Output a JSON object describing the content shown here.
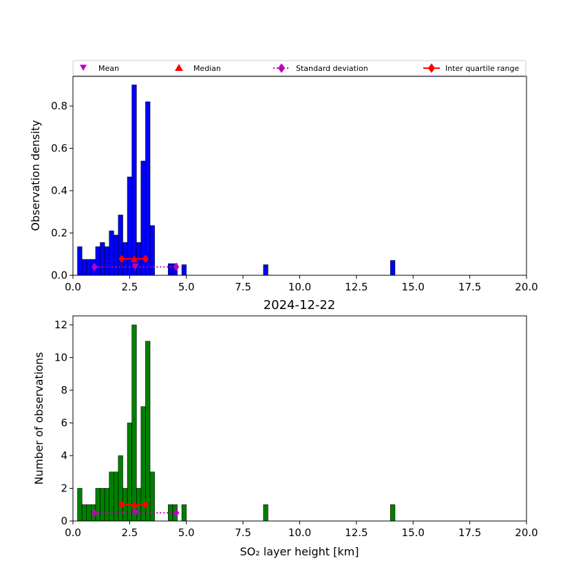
{
  "legend": {
    "mean_label": "Mean",
    "median_label": "Median",
    "std_label": "Standard deviation",
    "iqr_label": "Inter quartile range",
    "mean_color": "#bf00bf",
    "median_color": "#ff0000",
    "std_color": "#bf00bf",
    "iqr_color": "#ff0000"
  },
  "chart_data": [
    {
      "type": "bar",
      "id": "density",
      "title": "",
      "xlabel": "",
      "ylabel": "Observation density",
      "xlim": [
        0,
        20
      ],
      "ylim": [
        0,
        0.94
      ],
      "bar_color": "#0000ff",
      "bin_width": 0.2,
      "xticks": [
        "0.0",
        "2.5",
        "5.0",
        "7.5",
        "10.0",
        "12.5",
        "15.0",
        "17.5",
        "20.0"
      ],
      "xtick_values": [
        0,
        2.5,
        5,
        7.5,
        10,
        12.5,
        15,
        17.5,
        20
      ],
      "yticks": [
        "0.0",
        "0.2",
        "0.4",
        "0.6",
        "0.8"
      ],
      "ytick_values": [
        0,
        0.2,
        0.4,
        0.6,
        0.8
      ],
      "bin_starts": [
        0.2,
        0.4,
        0.6,
        0.8,
        1.0,
        1.2,
        1.4,
        1.6,
        1.8,
        2.0,
        2.2,
        2.4,
        2.6,
        2.8,
        3.0,
        3.2,
        3.4,
        4.2,
        4.4,
        4.8,
        8.4,
        14.0
      ],
      "values": [
        0.135,
        0.075,
        0.075,
        0.075,
        0.135,
        0.155,
        0.135,
        0.21,
        0.19,
        0.285,
        0.155,
        0.465,
        0.9,
        0.155,
        0.54,
        0.82,
        0.235,
        0.055,
        0.055,
        0.05,
        0.05,
        0.07
      ],
      "stats": {
        "mean": 2.75,
        "median": 2.7,
        "std_low": 0.95,
        "std_high": 4.55,
        "iqr_low": 2.15,
        "iqr_high": 3.2,
        "std_y": 0.04,
        "iqr_y": 0.078
      }
    },
    {
      "type": "bar",
      "id": "counts",
      "title": "2024-12-22",
      "xlabel": "SO₂ layer height [km]",
      "ylabel": "Number of observations",
      "xlim": [
        0,
        20
      ],
      "ylim": [
        0,
        12.55
      ],
      "bar_color": "#008000",
      "bin_width": 0.2,
      "xticks": [
        "0.0",
        "2.5",
        "5.0",
        "7.5",
        "10.0",
        "12.5",
        "15.0",
        "17.5",
        "20.0"
      ],
      "xtick_values": [
        0,
        2.5,
        5,
        7.5,
        10,
        12.5,
        15,
        17.5,
        20
      ],
      "yticks": [
        "0",
        "2",
        "4",
        "6",
        "8",
        "10",
        "12"
      ],
      "ytick_values": [
        0,
        2,
        4,
        6,
        8,
        10,
        12
      ],
      "bin_starts": [
        0.2,
        0.4,
        0.6,
        0.8,
        1.0,
        1.2,
        1.4,
        1.6,
        1.8,
        2.0,
        2.2,
        2.4,
        2.6,
        2.8,
        3.0,
        3.2,
        3.4,
        4.2,
        4.4,
        4.8,
        8.4,
        14.0
      ],
      "values": [
        2,
        1,
        1,
        1,
        2,
        2,
        2,
        3,
        3,
        4,
        2,
        6,
        12,
        2,
        7,
        11,
        3,
        1,
        1,
        1,
        1,
        1
      ],
      "stats": {
        "mean": 2.75,
        "median": 2.7,
        "std_low": 0.95,
        "std_high": 4.55,
        "iqr_low": 2.15,
        "iqr_high": 3.2,
        "std_y": 0.5,
        "iqr_y": 1.0
      }
    }
  ]
}
